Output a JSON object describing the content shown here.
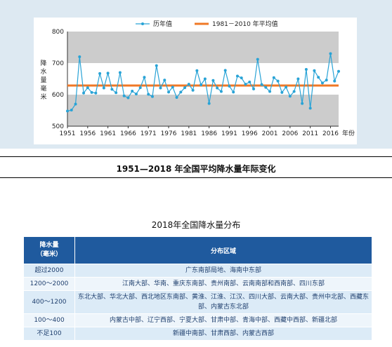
{
  "chart_data": {
    "type": "line",
    "title": "1951—2018 年全国平均降水量年际变化",
    "ylabel": "降水量（毫米）",
    "xlabel": "年份",
    "xlim": [
      1951,
      2018
    ],
    "ylim": [
      500,
      800
    ],
    "yticks": [
      500,
      600,
      700,
      800
    ],
    "xticks": [
      1951,
      1956,
      1961,
      1966,
      1971,
      1976,
      1981,
      1986,
      1991,
      1996,
      2001,
      2006,
      2011,
      2016
    ],
    "x_unit_label": "年份",
    "grid": "horizontal bands",
    "legend_position": "top",
    "colors": {
      "series": "#29a3d6",
      "average": "#f07826",
      "band_gray": "#cccccc",
      "band_white": "#ffffff"
    },
    "series": [
      {
        "name": "历年值",
        "x": [
          1951,
          1952,
          1953,
          1954,
          1955,
          1956,
          1957,
          1958,
          1959,
          1960,
          1961,
          1962,
          1963,
          1964,
          1965,
          1966,
          1967,
          1968,
          1969,
          1970,
          1971,
          1972,
          1973,
          1974,
          1975,
          1976,
          1977,
          1978,
          1979,
          1980,
          1981,
          1982,
          1983,
          1984,
          1985,
          1986,
          1987,
          1988,
          1989,
          1990,
          1991,
          1992,
          1993,
          1994,
          1995,
          1996,
          1997,
          1998,
          1999,
          2000,
          2001,
          2002,
          2003,
          2004,
          2005,
          2006,
          2007,
          2008,
          2009,
          2010,
          2011,
          2012,
          2013,
          2014,
          2015,
          2016,
          2017,
          2018
        ],
        "values": [
          548,
          551,
          570,
          720,
          605,
          622,
          607,
          605,
          667,
          621,
          668,
          617,
          606,
          670,
          596,
          590,
          611,
          602,
          622,
          655,
          601,
          594,
          692,
          621,
          646,
          608,
          624,
          591,
          608,
          622,
          633,
          614,
          676,
          631,
          650,
          572,
          645,
          621,
          610,
          677,
          627,
          608,
          659,
          653,
          633,
          640,
          618,
          712,
          632,
          623,
          610,
          654,
          643,
          607,
          624,
          595,
          610,
          650,
          572,
          680,
          557,
          676,
          655,
          637,
          646,
          730,
          643,
          674
        ]
      },
      {
        "name": "1981－2010 年平均值",
        "values": [
          629
        ]
      }
    ]
  },
  "table": {
    "title": "2018年全国降水量分布",
    "header_amount": "降水量（毫米）",
    "header_amount_line1": "降水量",
    "header_amount_line2": "（毫米）",
    "header_region": "分布区域",
    "rows": [
      {
        "amount": "超过2000",
        "region": "广东南部局地、海南中东部"
      },
      {
        "amount": "1200～2000",
        "region": "江南大部、华南、重庆东南部、贵州南部、云南南部和西南部、四川东部"
      },
      {
        "amount": "400～1200",
        "region": "东北大部、华北大部、西北地区东南部、黄淮、江淮、江汉、四川大部、云南大部、贵州中北部、西藏东部、内蒙古东北部"
      },
      {
        "amount": "100～400",
        "region": "内蒙古中部、辽宁西部、宁夏大部、甘肃中部、青海中部、西藏中西部、新疆北部"
      },
      {
        "amount": "不足100",
        "region": "新疆中南部、甘肃西部、内蒙古西部"
      }
    ]
  }
}
